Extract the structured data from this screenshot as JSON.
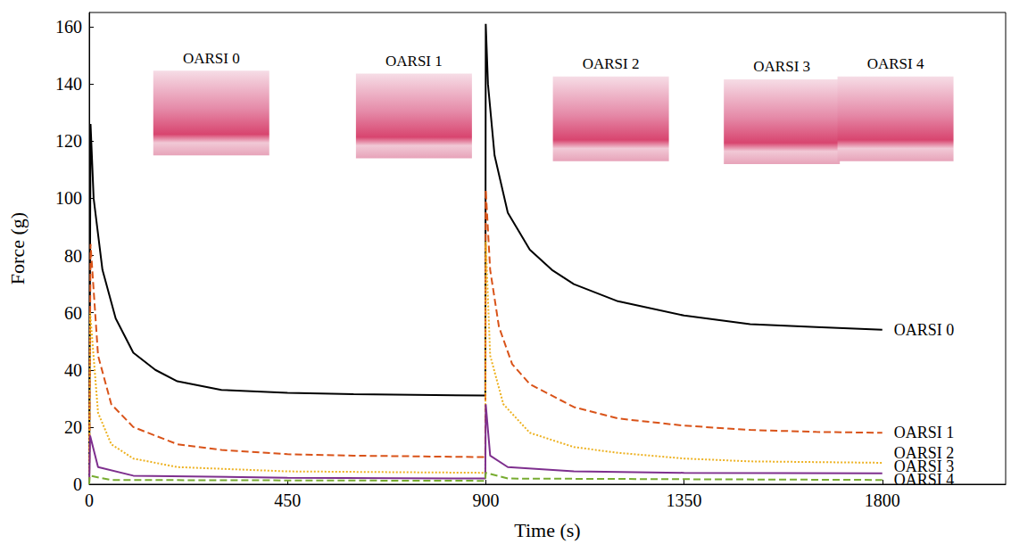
{
  "chart_data": {
    "type": "line",
    "x_label": "Time (s)",
    "y_label": "Force (g)",
    "xlim": [
      0,
      2080
    ],
    "xticks": [
      0,
      450,
      900,
      1350,
      1800
    ],
    "ylim": [
      0,
      165
    ],
    "yticks": [
      0,
      20,
      40,
      60,
      80,
      100,
      120,
      140,
      160
    ],
    "grid": false,
    "series": [
      {
        "name": "OARSI 0",
        "color": "#000000",
        "line_style": "solid",
        "marker": "none",
        "x": [
          0,
          3,
          10,
          30,
          60,
          100,
          150,
          200,
          300,
          450,
          600,
          899,
          900,
          905,
          920,
          950,
          1000,
          1050,
          1100,
          1200,
          1350,
          1500,
          1650,
          1800
        ],
        "values": [
          0,
          126,
          100,
          75,
          58,
          46,
          40,
          36,
          33,
          32,
          31.5,
          31,
          161,
          140,
          115,
          95,
          82,
          75,
          70,
          64,
          59,
          56,
          55,
          54
        ]
      },
      {
        "name": "OARSI 1",
        "color": "#d95319",
        "line_style": "dashed",
        "marker": "none",
        "x": [
          0,
          3,
          20,
          50,
          100,
          200,
          300,
          450,
          600,
          899,
          900,
          910,
          930,
          960,
          1000,
          1100,
          1200,
          1350,
          1500,
          1650,
          1800
        ],
        "values": [
          0,
          84,
          45,
          28,
          20,
          14,
          12,
          10.5,
          10,
          9.5,
          103,
          75,
          55,
          42,
          35,
          27,
          23,
          20.5,
          19,
          18.3,
          18
        ]
      },
      {
        "name": "OARSI 2",
        "color": "#edb120",
        "line_style": "dotted",
        "marker": "none",
        "x": [
          0,
          2,
          20,
          50,
          100,
          200,
          450,
          899,
          900,
          910,
          940,
          1000,
          1100,
          1200,
          1350,
          1500,
          1800
        ],
        "values": [
          0,
          60,
          25,
          14,
          9,
          6,
          4.5,
          4,
          85,
          45,
          28,
          18,
          13,
          11,
          9,
          8,
          7.5
        ]
      },
      {
        "name": "OARSI 3",
        "color": "#7e2f8e",
        "line_style": "solid",
        "marker": "none",
        "x": [
          0,
          2,
          20,
          100,
          450,
          899,
          900,
          910,
          950,
          1100,
          1350,
          1800
        ],
        "values": [
          0,
          17,
          6,
          3,
          2.3,
          2,
          28,
          10,
          6,
          4.5,
          4,
          3.8
        ]
      },
      {
        "name": "OARSI 4",
        "color": "#77ac30",
        "line_style": "dashed",
        "marker": "none",
        "x": [
          0,
          1,
          50,
          899,
          900,
          950,
          1800
        ],
        "values": [
          0,
          3,
          1.5,
          1.2,
          4,
          2,
          1.5
        ]
      }
    ],
    "annotations": [
      {
        "text": "OARSI 0",
        "x": 277,
        "y": 149
      },
      {
        "text": "OARSI 1",
        "x": 737,
        "y": 148
      },
      {
        "text": "OARSI 2",
        "x": 1184,
        "y": 147
      },
      {
        "text": "OARSI 3",
        "x": 1572,
        "y": 146
      },
      {
        "text": "OARSI 4",
        "x": 1830,
        "y": 147
      }
    ]
  }
}
